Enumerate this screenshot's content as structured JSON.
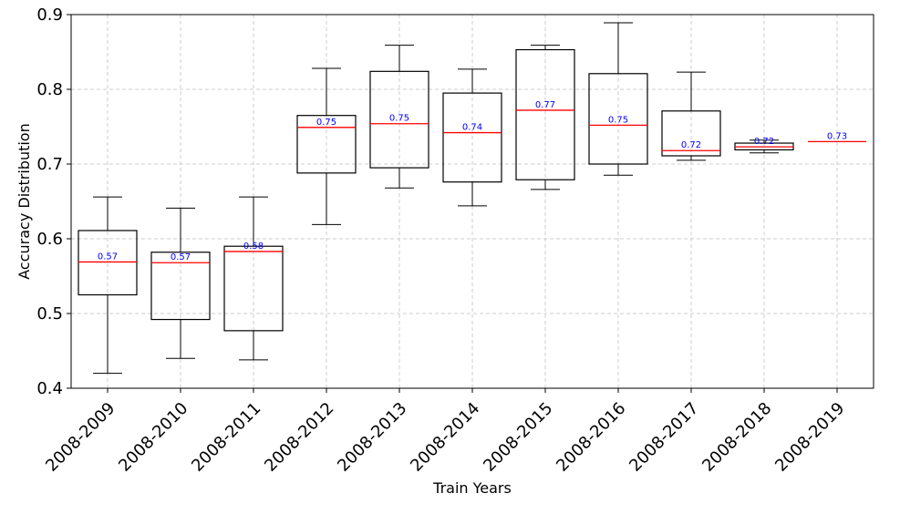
{
  "chart_data": {
    "type": "box",
    "title": "",
    "xlabel": "Train Years",
    "ylabel": "Accuracy Distribution",
    "ylim": [
      0.4,
      0.9
    ],
    "yticks": [
      "0.4",
      "0.5",
      "0.6",
      "0.7",
      "0.8",
      "0.9"
    ],
    "ytick_values": [
      0.4,
      0.5,
      0.6,
      0.7,
      0.8,
      0.9
    ],
    "grid": true,
    "colors": {
      "box": "#000000",
      "median": "#ff0000",
      "median_label": "#0000ff",
      "grid": "#cccccc"
    },
    "categories": [
      "2008-2009",
      "2008-2010",
      "2008-2011",
      "2008-2012",
      "2008-2013",
      "2008-2014",
      "2008-2015",
      "2008-2016",
      "2008-2017",
      "2008-2018",
      "2008-2019"
    ],
    "boxes": [
      {
        "category": "2008-2009",
        "whisker_low": 0.42,
        "q1": 0.525,
        "median": 0.569,
        "q3": 0.611,
        "whisker_high": 0.656,
        "label": "0.57"
      },
      {
        "category": "2008-2010",
        "whisker_low": 0.44,
        "q1": 0.492,
        "median": 0.568,
        "q3": 0.582,
        "whisker_high": 0.641,
        "label": "0.57"
      },
      {
        "category": "2008-2011",
        "whisker_low": 0.438,
        "q1": 0.477,
        "median": 0.583,
        "q3": 0.59,
        "whisker_high": 0.656,
        "label": "0.58"
      },
      {
        "category": "2008-2012",
        "whisker_low": 0.619,
        "q1": 0.688,
        "median": 0.749,
        "q3": 0.765,
        "whisker_high": 0.828,
        "label": "0.75"
      },
      {
        "category": "2008-2013",
        "whisker_low": 0.668,
        "q1": 0.695,
        "median": 0.754,
        "q3": 0.824,
        "whisker_high": 0.859,
        "label": "0.75"
      },
      {
        "category": "2008-2014",
        "whisker_low": 0.644,
        "q1": 0.676,
        "median": 0.742,
        "q3": 0.795,
        "whisker_high": 0.827,
        "label": "0.74"
      },
      {
        "category": "2008-2015",
        "whisker_low": 0.666,
        "q1": 0.679,
        "median": 0.772,
        "q3": 0.853,
        "whisker_high": 0.859,
        "label": "0.77"
      },
      {
        "category": "2008-2016",
        "whisker_low": 0.685,
        "q1": 0.7,
        "median": 0.752,
        "q3": 0.821,
        "whisker_high": 0.889,
        "label": "0.75"
      },
      {
        "category": "2008-2017",
        "whisker_low": 0.705,
        "q1": 0.711,
        "median": 0.718,
        "q3": 0.771,
        "whisker_high": 0.823,
        "label": "0.72"
      },
      {
        "category": "2008-2018",
        "whisker_low": 0.715,
        "q1": 0.719,
        "median": 0.723,
        "q3": 0.728,
        "whisker_high": 0.732,
        "label": "0.72"
      },
      {
        "category": "2008-2019",
        "whisker_low": 0.73,
        "q1": 0.73,
        "median": 0.73,
        "q3": 0.73,
        "whisker_high": 0.73,
        "label": "0.73"
      }
    ]
  }
}
